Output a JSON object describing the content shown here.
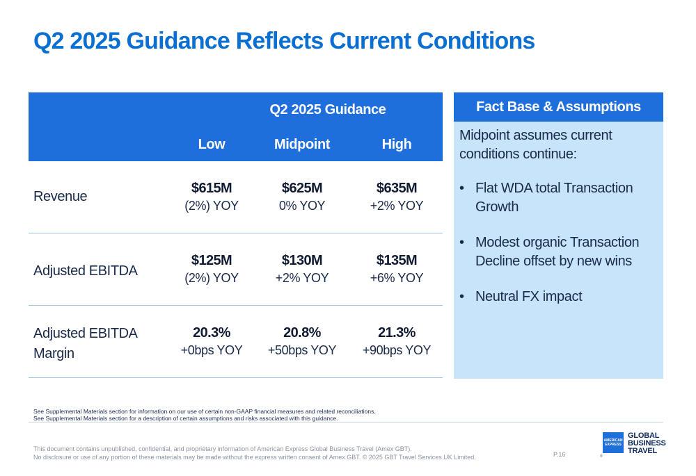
{
  "title": "Q2 2025 Guidance Reflects Current Conditions",
  "guidance": {
    "caption": "Q2 2025 Guidance",
    "columns": [
      "Low",
      "Midpoint",
      "High"
    ],
    "rows": [
      {
        "label": "Revenue",
        "cells": [
          {
            "value": "$615M",
            "yoy": "(2%) YOY"
          },
          {
            "value": "$625M",
            "yoy": "0% YOY"
          },
          {
            "value": "$635M",
            "yoy": "+2% YOY"
          }
        ]
      },
      {
        "label": "Adjusted EBITDA",
        "cells": [
          {
            "value": "$125M",
            "yoy": "(2%) YOY"
          },
          {
            "value": "$130M",
            "yoy": "+2% YOY"
          },
          {
            "value": "$135M",
            "yoy": "+6% YOY"
          }
        ]
      },
      {
        "label_line1": "Adjusted EBITDA",
        "label_line2": "Margin",
        "cells": [
          {
            "value": "20.3%",
            "yoy": "+0bps YOY"
          },
          {
            "value": "20.8%",
            "yoy": "+50bps YOY"
          },
          {
            "value": "21.3%",
            "yoy": "+90bps YOY"
          }
        ]
      }
    ]
  },
  "fact_base": {
    "title": "Fact Base & Assumptions",
    "intro": "Midpoint assumes current conditions continue:",
    "bullets": [
      "Flat WDA total Transaction Growth",
      "Modest organic Transaction Decline offset by new wins",
      "Neutral FX impact"
    ]
  },
  "notes": [
    "See Supplemental Materials section for information on our use of certain non-GAAP financial measures and related reconciliations.",
    "See Supplemental Materials section for a description of certain assumptions and risks associated with this guidance."
  ],
  "disclaimer": [
    "This document contains unpublished, confidential, and proprietary information of American Express Global Business Travel (Amex GBT).",
    "No disclosure or use of any portion of these materials may be made without the express written consent of Amex GBT. © 2025 GBT Travel Services UK Limited."
  ],
  "page_number": "P.16",
  "logo": {
    "box_line1": "AMERICAN",
    "box_line2": "EXPRESS",
    "word_line1": "GLOBAL",
    "word_line2": "BUSINESS",
    "word_line3": "TRAVEL",
    "registered": "®"
  },
  "colors": {
    "title_blue": "#0b6fd1",
    "header_blue": "#1e6fdc",
    "panel_light_blue": "#c7e4fb",
    "row_divider": "#9fc6e6"
  }
}
